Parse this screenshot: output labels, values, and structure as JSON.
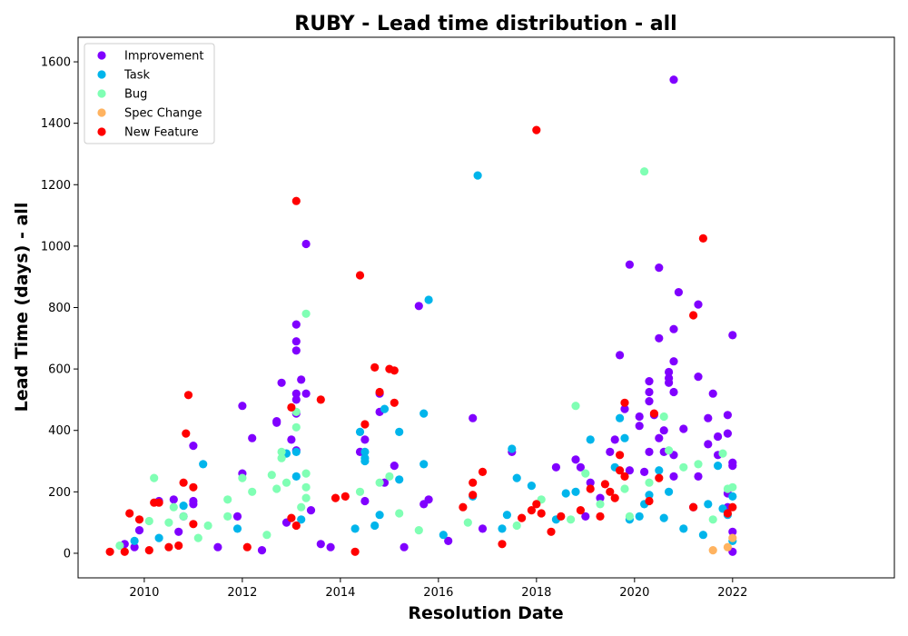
{
  "chart_data": {
    "type": "scatter",
    "title": "RUBY - Lead time distribution - all",
    "xlabel": "Resolution Date",
    "ylabel": "Lead Time (days) - all",
    "xlim": [
      2008.65,
      2025.3
    ],
    "ylim": [
      -80,
      1680
    ],
    "x_ticks": [
      "2010",
      "2012",
      "2014",
      "2016",
      "2018",
      "2020",
      "2022"
    ],
    "x_tick_values": [
      2010,
      2012,
      2014,
      2016,
      2018,
      2020,
      2022
    ],
    "y_ticks": [
      "0",
      "200",
      "400",
      "600",
      "800",
      "1000",
      "1200",
      "1400",
      "1600"
    ],
    "y_tick_values": [
      0,
      200,
      400,
      600,
      800,
      1000,
      1200,
      1400,
      1600
    ],
    "grid": false,
    "legend_position": "top-left",
    "series": [
      {
        "name": "Improvement",
        "color": "#8000ff",
        "points": [
          [
            2009.6,
            30
          ],
          [
            2009.8,
            20
          ],
          [
            2009.9,
            75
          ],
          [
            2010.3,
            170
          ],
          [
            2010.6,
            175
          ],
          [
            2010.7,
            70
          ],
          [
            2010.8,
            120
          ],
          [
            2011.0,
            350
          ],
          [
            2011.0,
            170
          ],
          [
            2011.0,
            160
          ],
          [
            2011.5,
            20
          ],
          [
            2011.9,
            120
          ],
          [
            2012.0,
            260
          ],
          [
            2012.0,
            480
          ],
          [
            2012.2,
            375
          ],
          [
            2012.4,
            10
          ],
          [
            2012.7,
            425
          ],
          [
            2012.7,
            430
          ],
          [
            2012.8,
            555
          ],
          [
            2012.9,
            100
          ],
          [
            2013.0,
            370
          ],
          [
            2013.1,
            745
          ],
          [
            2013.1,
            690
          ],
          [
            2013.1,
            660
          ],
          [
            2013.1,
            520
          ],
          [
            2013.1,
            500
          ],
          [
            2013.1,
            455
          ],
          [
            2013.1,
            335
          ],
          [
            2013.2,
            565
          ],
          [
            2013.3,
            520
          ],
          [
            2013.3,
            1007
          ],
          [
            2013.4,
            140
          ],
          [
            2013.6,
            30
          ],
          [
            2013.8,
            20
          ],
          [
            2014.4,
            330
          ],
          [
            2014.5,
            370
          ],
          [
            2014.5,
            170
          ],
          [
            2014.8,
            460
          ],
          [
            2014.8,
            520
          ],
          [
            2014.9,
            230
          ],
          [
            2015.1,
            285
          ],
          [
            2015.3,
            20
          ],
          [
            2015.6,
            805
          ],
          [
            2015.7,
            160
          ],
          [
            2015.8,
            175
          ],
          [
            2016.2,
            40
          ],
          [
            2016.7,
            440
          ],
          [
            2016.9,
            80
          ],
          [
            2017.5,
            330
          ],
          [
            2018.4,
            280
          ],
          [
            2018.8,
            305
          ],
          [
            2018.9,
            280
          ],
          [
            2019.0,
            120
          ],
          [
            2019.1,
            230
          ],
          [
            2019.3,
            180
          ],
          [
            2019.5,
            330
          ],
          [
            2019.6,
            370
          ],
          [
            2019.7,
            645
          ],
          [
            2019.8,
            470
          ],
          [
            2019.9,
            270
          ],
          [
            2019.9,
            940
          ],
          [
            2020.1,
            445
          ],
          [
            2020.1,
            415
          ],
          [
            2020.2,
            265
          ],
          [
            2020.3,
            560
          ],
          [
            2020.3,
            525
          ],
          [
            2020.3,
            495
          ],
          [
            2020.3,
            330
          ],
          [
            2020.4,
            450
          ],
          [
            2020.5,
            930
          ],
          [
            2020.5,
            700
          ],
          [
            2020.5,
            375
          ],
          [
            2020.6,
            400
          ],
          [
            2020.6,
            330
          ],
          [
            2020.7,
            570
          ],
          [
            2020.7,
            590
          ],
          [
            2020.7,
            555
          ],
          [
            2020.8,
            1542
          ],
          [
            2020.8,
            730
          ],
          [
            2020.8,
            625
          ],
          [
            2020.8,
            525
          ],
          [
            2020.8,
            320
          ],
          [
            2020.8,
            250
          ],
          [
            2020.9,
            850
          ],
          [
            2021.0,
            405
          ],
          [
            2021.2,
            150
          ],
          [
            2021.3,
            810
          ],
          [
            2021.3,
            575
          ],
          [
            2021.3,
            250
          ],
          [
            2021.5,
            440
          ],
          [
            2021.5,
            355
          ],
          [
            2021.6,
            520
          ],
          [
            2021.7,
            380
          ],
          [
            2021.7,
            320
          ],
          [
            2021.9,
            195
          ],
          [
            2021.9,
            150
          ],
          [
            2021.9,
            450
          ],
          [
            2021.9,
            390
          ],
          [
            2022.0,
            710
          ],
          [
            2022.0,
            295
          ],
          [
            2022.0,
            285
          ],
          [
            2022.0,
            70
          ],
          [
            2022.0,
            5
          ]
        ]
      },
      {
        "name": "Task",
        "color": "#00b5eb",
        "points": [
          [
            2009.8,
            40
          ],
          [
            2010.3,
            50
          ],
          [
            2010.8,
            155
          ],
          [
            2011.2,
            290
          ],
          [
            2011.9,
            80
          ],
          [
            2012.9,
            325
          ],
          [
            2013.1,
            330
          ],
          [
            2013.1,
            250
          ],
          [
            2013.2,
            110
          ],
          [
            2014.3,
            80
          ],
          [
            2014.4,
            395
          ],
          [
            2014.5,
            330
          ],
          [
            2014.5,
            310
          ],
          [
            2014.5,
            300
          ],
          [
            2014.7,
            90
          ],
          [
            2014.8,
            125
          ],
          [
            2014.9,
            470
          ],
          [
            2015.2,
            240
          ],
          [
            2015.2,
            395
          ],
          [
            2015.7,
            455
          ],
          [
            2015.7,
            290
          ],
          [
            2015.8,
            825
          ],
          [
            2016.1,
            60
          ],
          [
            2016.7,
            185
          ],
          [
            2016.8,
            1230
          ],
          [
            2017.3,
            80
          ],
          [
            2017.4,
            125
          ],
          [
            2017.5,
            340
          ],
          [
            2017.6,
            245
          ],
          [
            2017.9,
            220
          ],
          [
            2018.4,
            110
          ],
          [
            2018.6,
            195
          ],
          [
            2018.8,
            200
          ],
          [
            2019.1,
            370
          ],
          [
            2019.6,
            280
          ],
          [
            2019.7,
            440
          ],
          [
            2019.8,
            375
          ],
          [
            2019.9,
            110
          ],
          [
            2020.1,
            120
          ],
          [
            2020.2,
            160
          ],
          [
            2020.3,
            190
          ],
          [
            2020.5,
            270
          ],
          [
            2020.6,
            115
          ],
          [
            2020.7,
            200
          ],
          [
            2021.0,
            80
          ],
          [
            2021.4,
            60
          ],
          [
            2021.5,
            160
          ],
          [
            2021.7,
            285
          ],
          [
            2021.8,
            145
          ],
          [
            2021.9,
            125
          ],
          [
            2022.0,
            185
          ],
          [
            2022.0,
            40
          ]
        ]
      },
      {
        "name": "Bug",
        "color": "#80ffb4",
        "points": [
          [
            2009.5,
            25
          ],
          [
            2010.1,
            105
          ],
          [
            2010.2,
            245
          ],
          [
            2010.5,
            100
          ],
          [
            2010.6,
            150
          ],
          [
            2010.8,
            120
          ],
          [
            2011.1,
            50
          ],
          [
            2011.3,
            90
          ],
          [
            2011.7,
            120
          ],
          [
            2011.7,
            175
          ],
          [
            2012.0,
            245
          ],
          [
            2012.2,
            200
          ],
          [
            2012.5,
            60
          ],
          [
            2012.6,
            255
          ],
          [
            2012.7,
            210
          ],
          [
            2012.8,
            330
          ],
          [
            2012.8,
            310
          ],
          [
            2012.9,
            230
          ],
          [
            2013.1,
            410
          ],
          [
            2013.1,
            460
          ],
          [
            2013.2,
            150
          ],
          [
            2013.3,
            780
          ],
          [
            2013.3,
            260
          ],
          [
            2013.3,
            215
          ],
          [
            2013.3,
            180
          ],
          [
            2014.4,
            200
          ],
          [
            2014.8,
            230
          ],
          [
            2015.0,
            250
          ],
          [
            2015.2,
            130
          ],
          [
            2015.6,
            75
          ],
          [
            2016.6,
            100
          ],
          [
            2017.6,
            90
          ],
          [
            2018.1,
            175
          ],
          [
            2018.7,
            110
          ],
          [
            2018.8,
            480
          ],
          [
            2019.0,
            260
          ],
          [
            2019.3,
            160
          ],
          [
            2019.8,
            210
          ],
          [
            2019.9,
            120
          ],
          [
            2020.2,
            1243
          ],
          [
            2020.3,
            230
          ],
          [
            2020.6,
            445
          ],
          [
            2020.7,
            335
          ],
          [
            2021.0,
            280
          ],
          [
            2021.3,
            290
          ],
          [
            2021.6,
            110
          ],
          [
            2021.8,
            325
          ],
          [
            2021.9,
            210
          ],
          [
            2022.0,
            215
          ]
        ]
      },
      {
        "name": "Spec Change",
        "color": "#ffb360",
        "points": [
          [
            2021.6,
            10
          ],
          [
            2021.9,
            20
          ],
          [
            2022.0,
            50
          ]
        ]
      },
      {
        "name": "New Feature",
        "color": "#ff0000",
        "points": [
          [
            2009.3,
            5
          ],
          [
            2009.6,
            5
          ],
          [
            2009.7,
            130
          ],
          [
            2009.9,
            110
          ],
          [
            2010.1,
            10
          ],
          [
            2010.2,
            165
          ],
          [
            2010.3,
            165
          ],
          [
            2010.5,
            20
          ],
          [
            2010.7,
            25
          ],
          [
            2010.8,
            230
          ],
          [
            2010.85,
            390
          ],
          [
            2010.9,
            515
          ],
          [
            2011.0,
            95
          ],
          [
            2011.0,
            215
          ],
          [
            2012.1,
            20
          ],
          [
            2013.0,
            475
          ],
          [
            2013.0,
            115
          ],
          [
            2013.1,
            1147
          ],
          [
            2013.1,
            90
          ],
          [
            2013.6,
            500
          ],
          [
            2013.9,
            180
          ],
          [
            2014.1,
            185
          ],
          [
            2014.3,
            5
          ],
          [
            2014.4,
            905
          ],
          [
            2014.5,
            420
          ],
          [
            2014.7,
            605
          ],
          [
            2014.8,
            525
          ],
          [
            2015.0,
            600
          ],
          [
            2015.1,
            595
          ],
          [
            2015.1,
            490
          ],
          [
            2016.5,
            150
          ],
          [
            2016.7,
            190
          ],
          [
            2016.7,
            230
          ],
          [
            2016.9,
            265
          ],
          [
            2017.3,
            30
          ],
          [
            2017.7,
            115
          ],
          [
            2017.9,
            140
          ],
          [
            2018.0,
            1378
          ],
          [
            2018.0,
            160
          ],
          [
            2018.1,
            130
          ],
          [
            2018.3,
            70
          ],
          [
            2018.5,
            120
          ],
          [
            2018.9,
            140
          ],
          [
            2019.1,
            210
          ],
          [
            2019.3,
            120
          ],
          [
            2019.4,
            225
          ],
          [
            2019.5,
            200
          ],
          [
            2019.6,
            180
          ],
          [
            2019.7,
            270
          ],
          [
            2019.7,
            320
          ],
          [
            2019.8,
            490
          ],
          [
            2019.8,
            250
          ],
          [
            2020.3,
            170
          ],
          [
            2020.4,
            455
          ],
          [
            2020.5,
            245
          ],
          [
            2021.2,
            775
          ],
          [
            2021.2,
            150
          ],
          [
            2021.4,
            1025
          ],
          [
            2022.0,
            150
          ],
          [
            2021.9,
            130
          ]
        ]
      }
    ]
  }
}
